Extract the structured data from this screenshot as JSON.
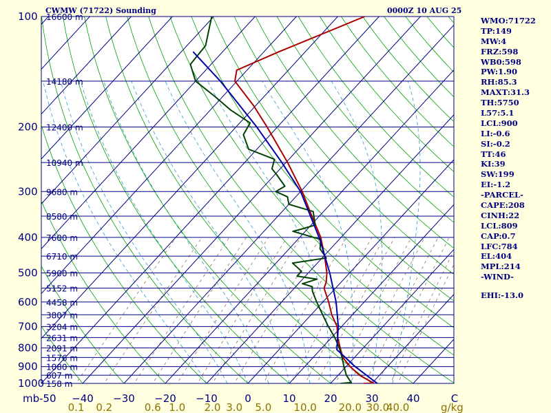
{
  "header": {
    "title": "CWMW (71722) Sounding",
    "datetime": "0000Z 10 AUG 25"
  },
  "indices": [
    "WMO:71722",
    "TP:149",
    "MW:4",
    "FRZ:598",
    "WB0:598",
    "PW:1.90",
    "RH:85.3",
    "MAXT:31.3",
    "TH:5750",
    "L57:5.1",
    "LCL:900",
    "LI:-0.6",
    "SI:-0.2",
    "TT:46",
    "KI:39",
    "SW:199",
    "EI:-1.2",
    "-PARCEL-",
    "CAPE:208",
    "CINH:22",
    "LCL:809",
    "CAP:0.7",
    "LFC:784",
    "EL:404",
    "MPL:214",
    "-WIND-"
  ],
  "ehi": "EHI:-13.0",
  "colors": {
    "background": "#ffffe0",
    "plot_background": "#ffffff",
    "isobar": "#000080",
    "isotherm": "#000080",
    "dry_adiabat": "#00a000",
    "moist_adiabat": "#3399cc",
    "mixing_ratio": "#8b7355",
    "temperature": "#aa0000",
    "dewpoint": "#004000",
    "parcel": "#0000aa"
  },
  "chart_data": {
    "type": "line",
    "subtype": "skew-T log-P diagram",
    "pressure_unit_label": "mb",
    "mixing_ratio_unit_label": "g/kg",
    "pressure_range": [
      1000,
      100
    ],
    "temperature_range": [
      -50,
      50
    ],
    "log_pressure_axis": true,
    "isobars": [
      {
        "p": 100,
        "label": "100",
        "height": "16600 m"
      },
      {
        "p": 150,
        "label": "",
        "height": "14180 m"
      },
      {
        "p": 200,
        "label": "200",
        "height": "12400 m"
      },
      {
        "p": 250,
        "label": "",
        "height": "10940 m"
      },
      {
        "p": 300,
        "label": "300",
        "height": "9680 m"
      },
      {
        "p": 350,
        "label": "",
        "height": "8580 m"
      },
      {
        "p": 400,
        "label": "400",
        "height": "7600 m"
      },
      {
        "p": 450,
        "label": "",
        "height": "6710 m"
      },
      {
        "p": 500,
        "label": "500",
        "height": "5900 m"
      },
      {
        "p": 550,
        "label": "",
        "height": "5152 m"
      },
      {
        "p": 600,
        "label": "600",
        "height": "4458 m"
      },
      {
        "p": 650,
        "label": "",
        "height": "3807 m"
      },
      {
        "p": 700,
        "label": "700",
        "height": "3204 m"
      },
      {
        "p": 750,
        "label": "",
        "height": "2631 m"
      },
      {
        "p": 800,
        "label": "800",
        "height": "2091 m"
      },
      {
        "p": 850,
        "label": "",
        "height": "1576 m"
      },
      {
        "p": 900,
        "label": "900",
        "height": "1080 m"
      },
      {
        "p": 950,
        "label": "",
        "height": "607 m"
      },
      {
        "p": 1000,
        "label": "1000",
        "height": "158 m"
      }
    ],
    "temperature_ticks": [
      -50,
      -40,
      -30,
      -20,
      -10,
      0,
      10,
      20,
      30,
      40,
      50
    ],
    "temperature_tick_labels": [
      "-50",
      "−40",
      "−30",
      "−20",
      "−10",
      "0",
      "10",
      "20",
      "30",
      "40",
      "C"
    ],
    "mixing_ratio_labels": [
      {
        "w": 0.1,
        "label": "0.1"
      },
      {
        "w": 0.2,
        "label": "0.2"
      },
      {
        "w": 0.6,
        "label": "0.6"
      },
      {
        "w": 1.0,
        "label": "1.0"
      },
      {
        "w": 2.0,
        "label": "2.0"
      },
      {
        "w": 3.0,
        "label": "3.0"
      },
      {
        "w": 5.0,
        "label": "5.0"
      },
      {
        "w": 10.0,
        "label": "10.0"
      },
      {
        "w": 20.0,
        "label": "20.0"
      },
      {
        "w": 30.0,
        "label": "30.0"
      },
      {
        "w": 40.0,
        "label": "40.0"
      }
    ],
    "series": [
      {
        "id": "temperature",
        "points": [
          {
            "p": 1000,
            "t": 28.0
          },
          {
            "p": 999,
            "t": 30.4
          },
          {
            "p": 950,
            "t": 25.2
          },
          {
            "p": 900,
            "t": 21.0
          },
          {
            "p": 850,
            "t": 17.2
          },
          {
            "p": 800,
            "t": 14.4
          },
          {
            "p": 750,
            "t": 11.5
          },
          {
            "p": 700,
            "t": 8.9
          },
          {
            "p": 650,
            "t": 5.0
          },
          {
            "p": 600,
            "t": 1.4
          },
          {
            "p": 550,
            "t": -2.8
          },
          {
            "p": 530,
            "t": -3.6
          },
          {
            "p": 500,
            "t": -5.5
          },
          {
            "p": 450,
            "t": -9.8
          },
          {
            "p": 400,
            "t": -14.9
          },
          {
            "p": 350,
            "t": -21.8
          },
          {
            "p": 300,
            "t": -29.6
          },
          {
            "p": 250,
            "t": -39.6
          },
          {
            "p": 200,
            "t": -52.5
          },
          {
            "p": 175,
            "t": -60.5
          },
          {
            "p": 150,
            "t": -70.5
          },
          {
            "p": 140,
            "t": -72.5
          },
          {
            "p": 125,
            "t": -66.5
          },
          {
            "p": 100,
            "t": -53.5
          }
        ]
      },
      {
        "id": "dewpoint",
        "points": [
          {
            "p": 1000,
            "td": 22.5
          },
          {
            "p": 995,
            "td": 24.8
          },
          {
            "p": 950,
            "td": 22.0
          },
          {
            "p": 900,
            "td": 19.5
          },
          {
            "p": 850,
            "td": 17.0
          },
          {
            "p": 800,
            "td": 14.2
          },
          {
            "p": 750,
            "td": 10.8
          },
          {
            "p": 700,
            "td": 6.8
          },
          {
            "p": 650,
            "td": 2.8
          },
          {
            "p": 600,
            "td": -1.5
          },
          {
            "p": 560,
            "td": -5.0
          },
          {
            "p": 545,
            "td": -6.0
          },
          {
            "p": 535,
            "td": -9.0
          },
          {
            "p": 520,
            "td": -6.5
          },
          {
            "p": 510,
            "td": -12.0
          },
          {
            "p": 495,
            "td": -12.0
          },
          {
            "p": 470,
            "td": -16.0
          },
          {
            "p": 455,
            "td": -9.0
          },
          {
            "p": 430,
            "td": -12.5
          },
          {
            "p": 405,
            "td": -14.5
          },
          {
            "p": 385,
            "td": -23.0
          },
          {
            "p": 380,
            "td": -21.5
          },
          {
            "p": 370,
            "td": -19.0
          },
          {
            "p": 340,
            "td": -22.5
          },
          {
            "p": 325,
            "td": -30.0
          },
          {
            "p": 310,
            "td": -32.0
          },
          {
            "p": 300,
            "td": -36.0
          },
          {
            "p": 290,
            "td": -35.0
          },
          {
            "p": 270,
            "td": -39.5
          },
          {
            "p": 260,
            "td": -42.0
          },
          {
            "p": 245,
            "td": -43.5
          },
          {
            "p": 230,
            "td": -52.0
          },
          {
            "p": 210,
            "td": -56.5
          },
          {
            "p": 195,
            "td": -57.5
          },
          {
            "p": 180,
            "td": -65.0
          },
          {
            "p": 165,
            "td": -72.0
          },
          {
            "p": 150,
            "td": -80.0
          },
          {
            "p": 135,
            "td": -85.0
          },
          {
            "p": 120,
            "td": -85.5
          },
          {
            "p": 100,
            "td": -90.5
          }
        ]
      },
      {
        "id": "parcel",
        "points": [
          {
            "p": 1000,
            "t": 31.3
          },
          {
            "p": 900,
            "t": 22.2
          },
          {
            "p": 809,
            "t": 14.0
          },
          {
            "p": 700,
            "t": 9.2
          },
          {
            "p": 600,
            "t": 3.2
          },
          {
            "p": 500,
            "t": -4.8
          },
          {
            "p": 404,
            "t": -14.8
          },
          {
            "p": 300,
            "t": -30.0
          },
          {
            "p": 250,
            "t": -41.0
          },
          {
            "p": 200,
            "t": -55.0
          },
          {
            "p": 150,
            "t": -74.0
          },
          {
            "p": 125,
            "t": -87.0
          }
        ]
      }
    ]
  }
}
